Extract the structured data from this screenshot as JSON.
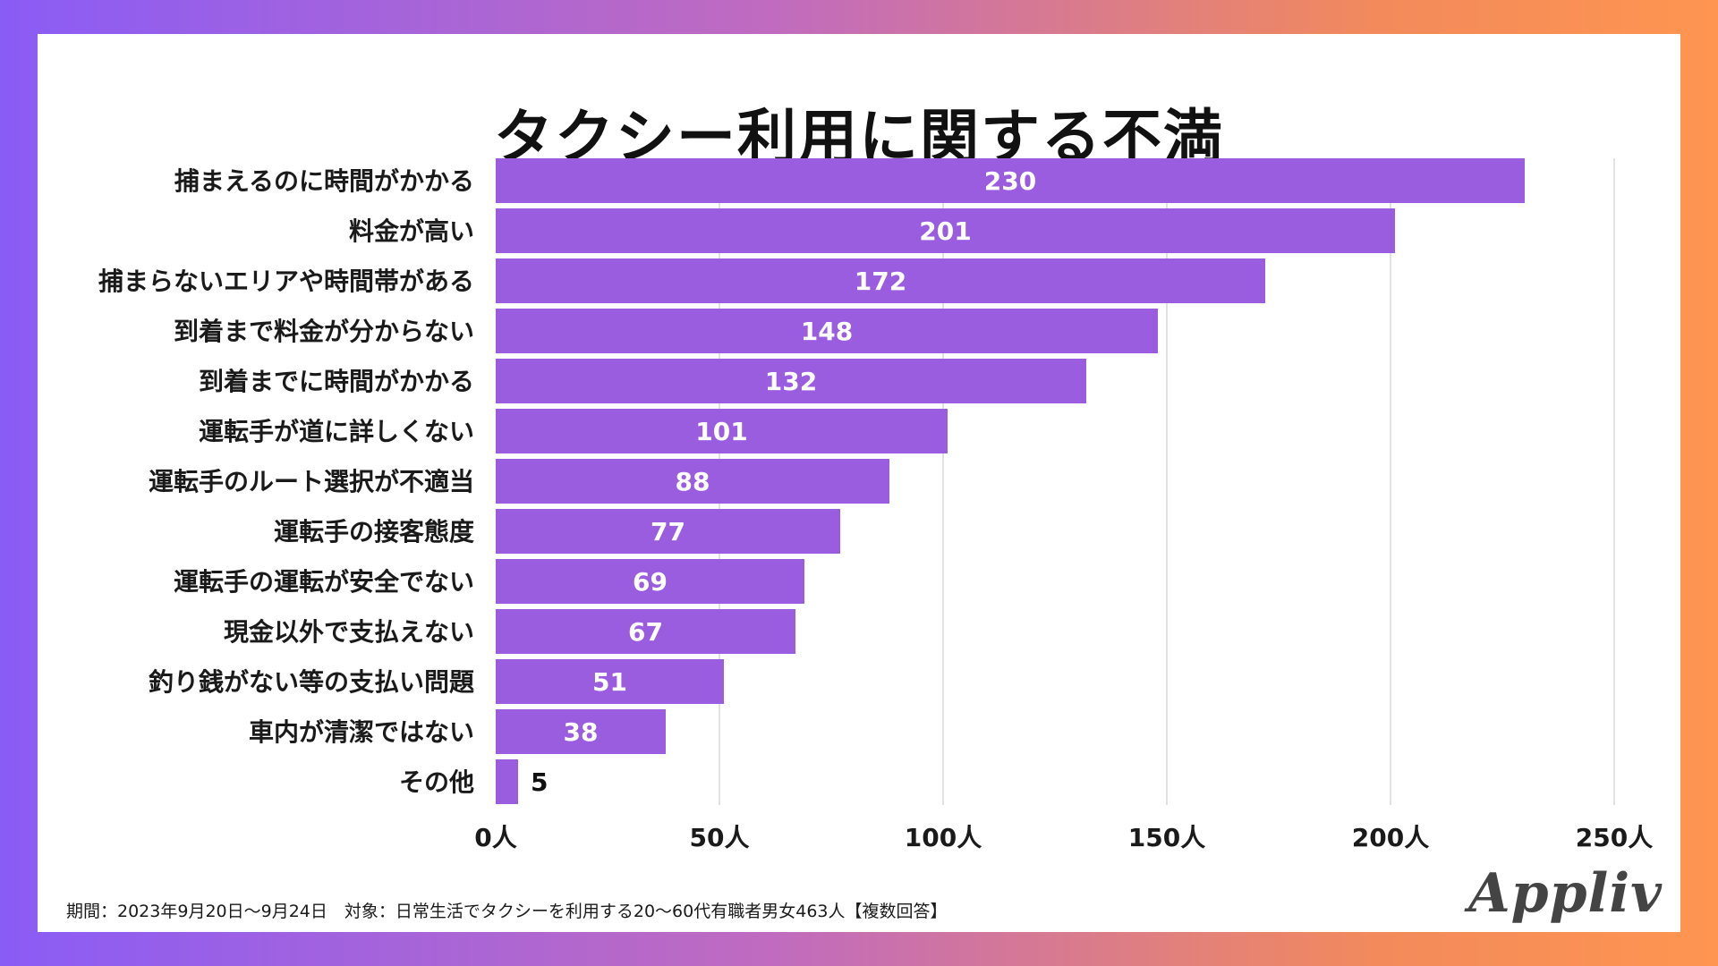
{
  "title": "タクシー利用に関する不満",
  "footnote": "期間：2023年9月20日〜9月24日　対象：日常生活でタクシーを利用する20〜60代有職者男女463人【複数回答】",
  "logo": "Appliv",
  "colors": {
    "bar": "#9b5de0",
    "grid": "#d9d9d9",
    "value_inside": "#ffffff",
    "value_outside": "#111111"
  },
  "chart_data": {
    "type": "bar",
    "orientation": "horizontal",
    "title": "タクシー利用に関する不満",
    "categories": [
      "捕まえるのに時間がかかる",
      "料金が高い",
      "捕まらないエリアや時間帯がある",
      "到着まで料金が分からない",
      "到着までに時間がかかる",
      "運転手が道に詳しくない",
      "運転手のルート選択が不適当",
      "運転手の接客態度",
      "運転手の運転が安全でない",
      "現金以外で支払えない",
      "釣り銭がない等の支払い問題",
      "車内が清潔ではない",
      "その他"
    ],
    "values": [
      230,
      201,
      172,
      148,
      132,
      101,
      88,
      77,
      69,
      67,
      51,
      38,
      5
    ],
    "xlim": [
      0,
      250
    ],
    "xticks": [
      0,
      50,
      100,
      150,
      200,
      250
    ],
    "xtick_labels": [
      "0人",
      "50人",
      "100人",
      "150人",
      "200人",
      "250人"
    ],
    "xlabel": "",
    "ylabel": "",
    "grid": true
  }
}
